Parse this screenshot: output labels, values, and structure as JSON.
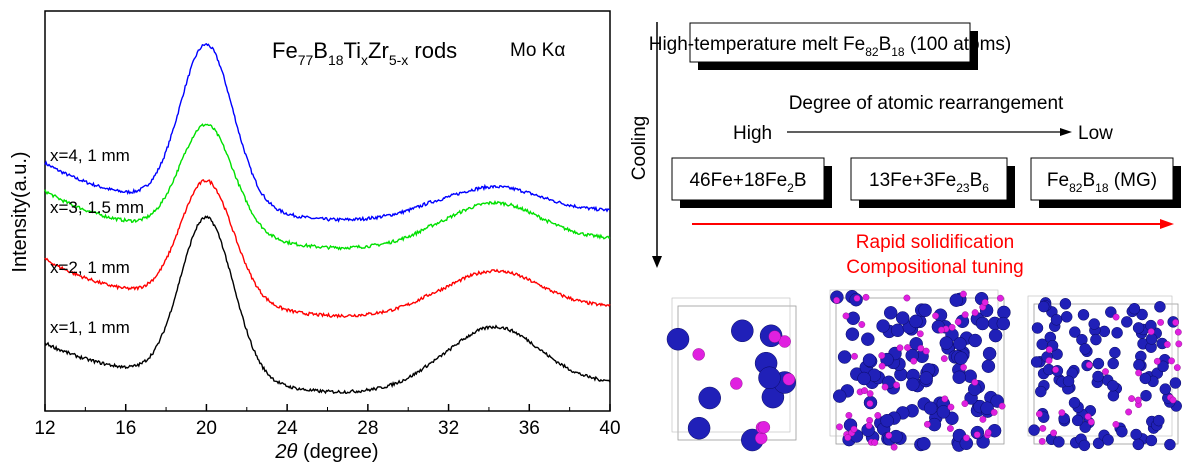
{
  "chart_data": {
    "type": "line",
    "title_parts": {
      "fe": "Fe",
      "fe_sub": "77",
      "b": "B",
      "b_sub": "18",
      "ti": "Ti",
      "ti_sub": "x",
      "zr": "Zr",
      "zr_sub": "5-x",
      "rods": " rods"
    },
    "radiation": "Mo Kα",
    "ylabel": "Intensity(a.u.)",
    "xlabel_theta": "2θ",
    "xlabel_unit": " (degree)",
    "xlim": [
      12,
      40
    ],
    "xticks": [
      "12",
      "16",
      "20",
      "24",
      "28",
      "32",
      "36",
      "40"
    ],
    "series": [
      {
        "name": "x=4, 1 mm",
        "color": "#0000ff",
        "base": 0.5,
        "peak1": 0.4,
        "peak2": 0.06,
        "tail_lo": 0.12
      },
      {
        "name": "x=3, 1.5 mm",
        "color": "#00e000",
        "base": 0.43,
        "peak1": 0.27,
        "peak2": 0.09,
        "tail_lo": 0.12
      },
      {
        "name": "x=2, 1 mm",
        "color": "#ff0000",
        "base": 0.26,
        "peak1": 0.3,
        "peak2": 0.09,
        "tail_lo": 0.12
      },
      {
        "name": "x=1, 1 mm",
        "color": "#000000",
        "base": 0.07,
        "peak1": 0.4,
        "peak2": 0.14,
        "tail_lo": 0.1
      }
    ]
  },
  "diagram": {
    "top_box": {
      "pre": "High-temperature melt Fe",
      "sub1": "82",
      "mid": "B",
      "sub2": "18",
      "post": " (100 atoms)"
    },
    "cooling": "Cooling",
    "rearrangement": "Degree of atomic rearrangement",
    "high": "High",
    "low": "Low",
    "box1": {
      "pre": "46Fe+18Fe",
      "sub": "2",
      "post": "B"
    },
    "box2": {
      "pre": "13Fe+3Fe",
      "sub1": "23",
      "mid": "B",
      "sub2": "6"
    },
    "box3": {
      "pre": "Fe",
      "sub1": "82",
      "mid": "B",
      "sub2": "18",
      "post": " (MG)"
    },
    "red_line1": "Rapid solidification",
    "red_line2": "Compositional tuning",
    "red_color": "#ff0000"
  }
}
